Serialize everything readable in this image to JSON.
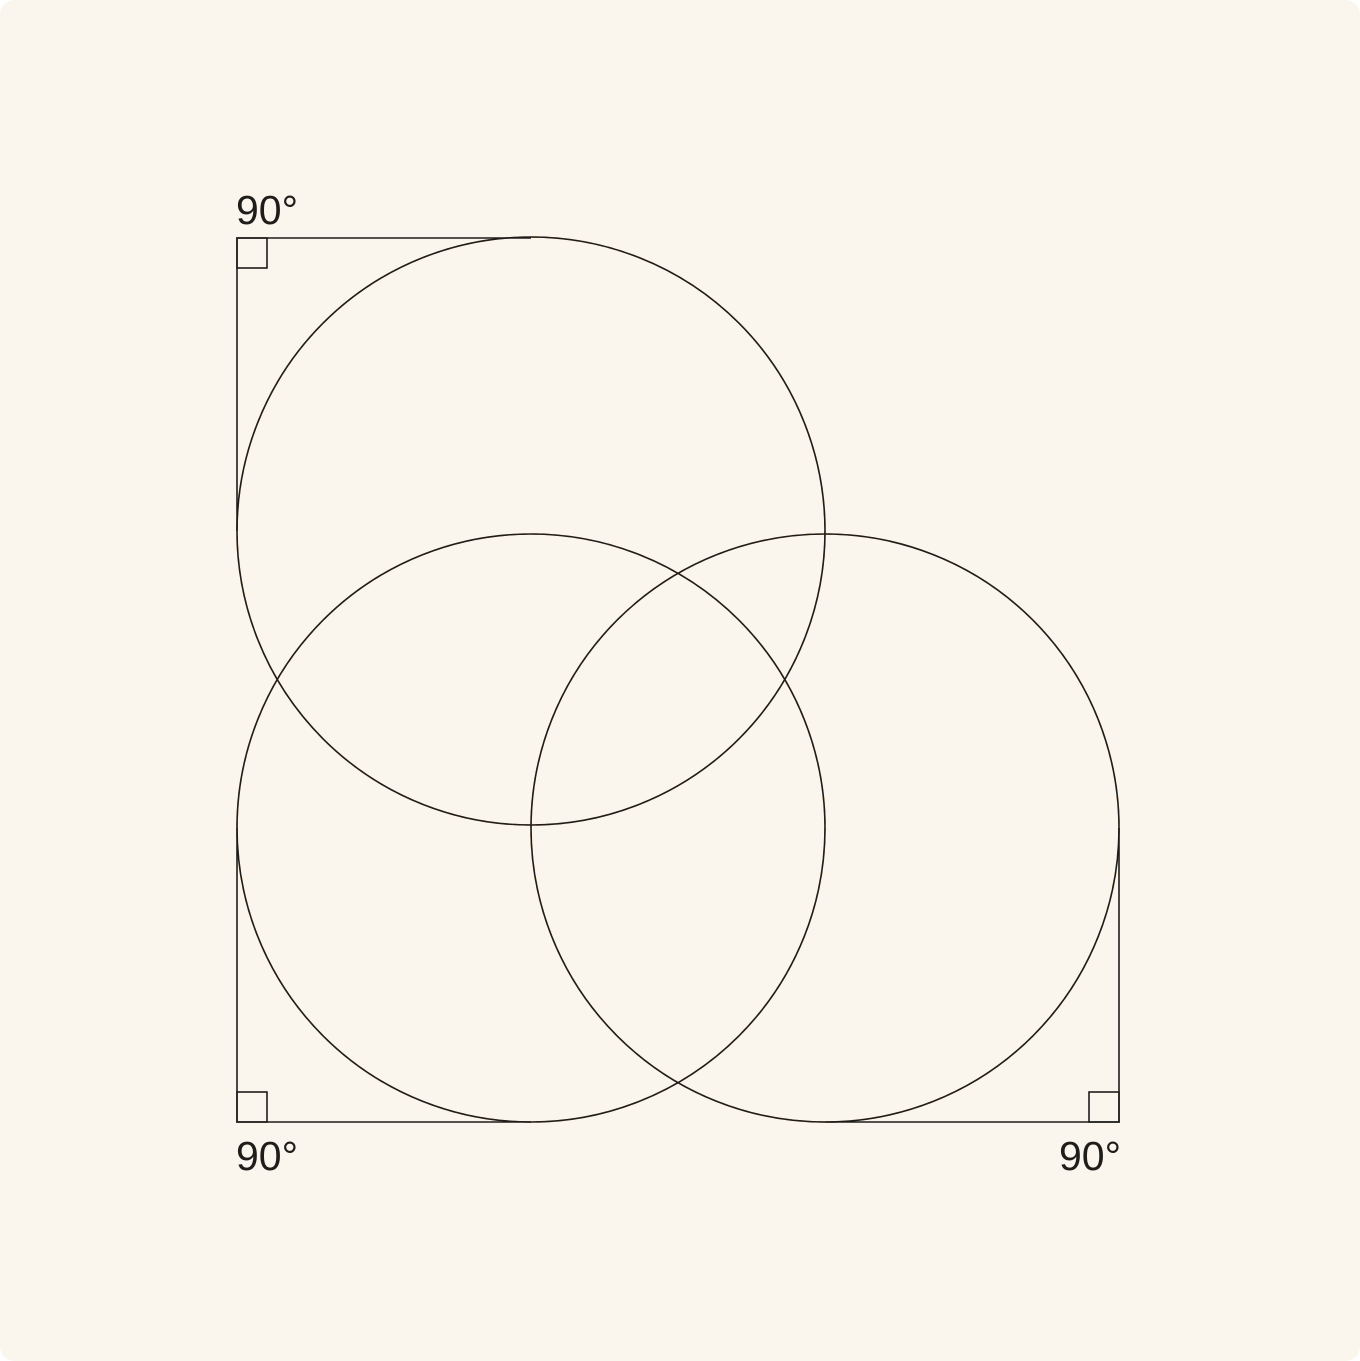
{
  "diagram": {
    "colors": {
      "background": "#faf6ee",
      "stroke": "#1f1d1a",
      "dashed": "#e69a43"
    },
    "angle_labels": {
      "top_left": "90°",
      "bottom_left": "90°",
      "bottom_right": "90°"
    }
  }
}
